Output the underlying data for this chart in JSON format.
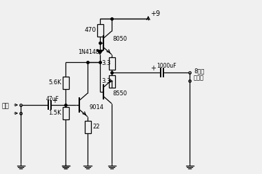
{
  "bg_color": "#f0f0f0",
  "line_color": "#000000",
  "text_color": "#000000",
  "figsize": [
    3.8,
    2.52
  ],
  "dpi": 100,
  "title": "",
  "components": {
    "vcc": "+9",
    "r470": "470",
    "diode": "1N4148",
    "r33a": "3.3",
    "r33b": "3.3",
    "c1000": "1000uF",
    "r56k": "5.6K",
    "r15k": "1.5K",
    "c47": "47uF",
    "r22": "22",
    "t8050": "8050",
    "t8550": "8550",
    "t9014": "9014",
    "speaker": "8欧姆\n扬声器",
    "input": "输入"
  }
}
